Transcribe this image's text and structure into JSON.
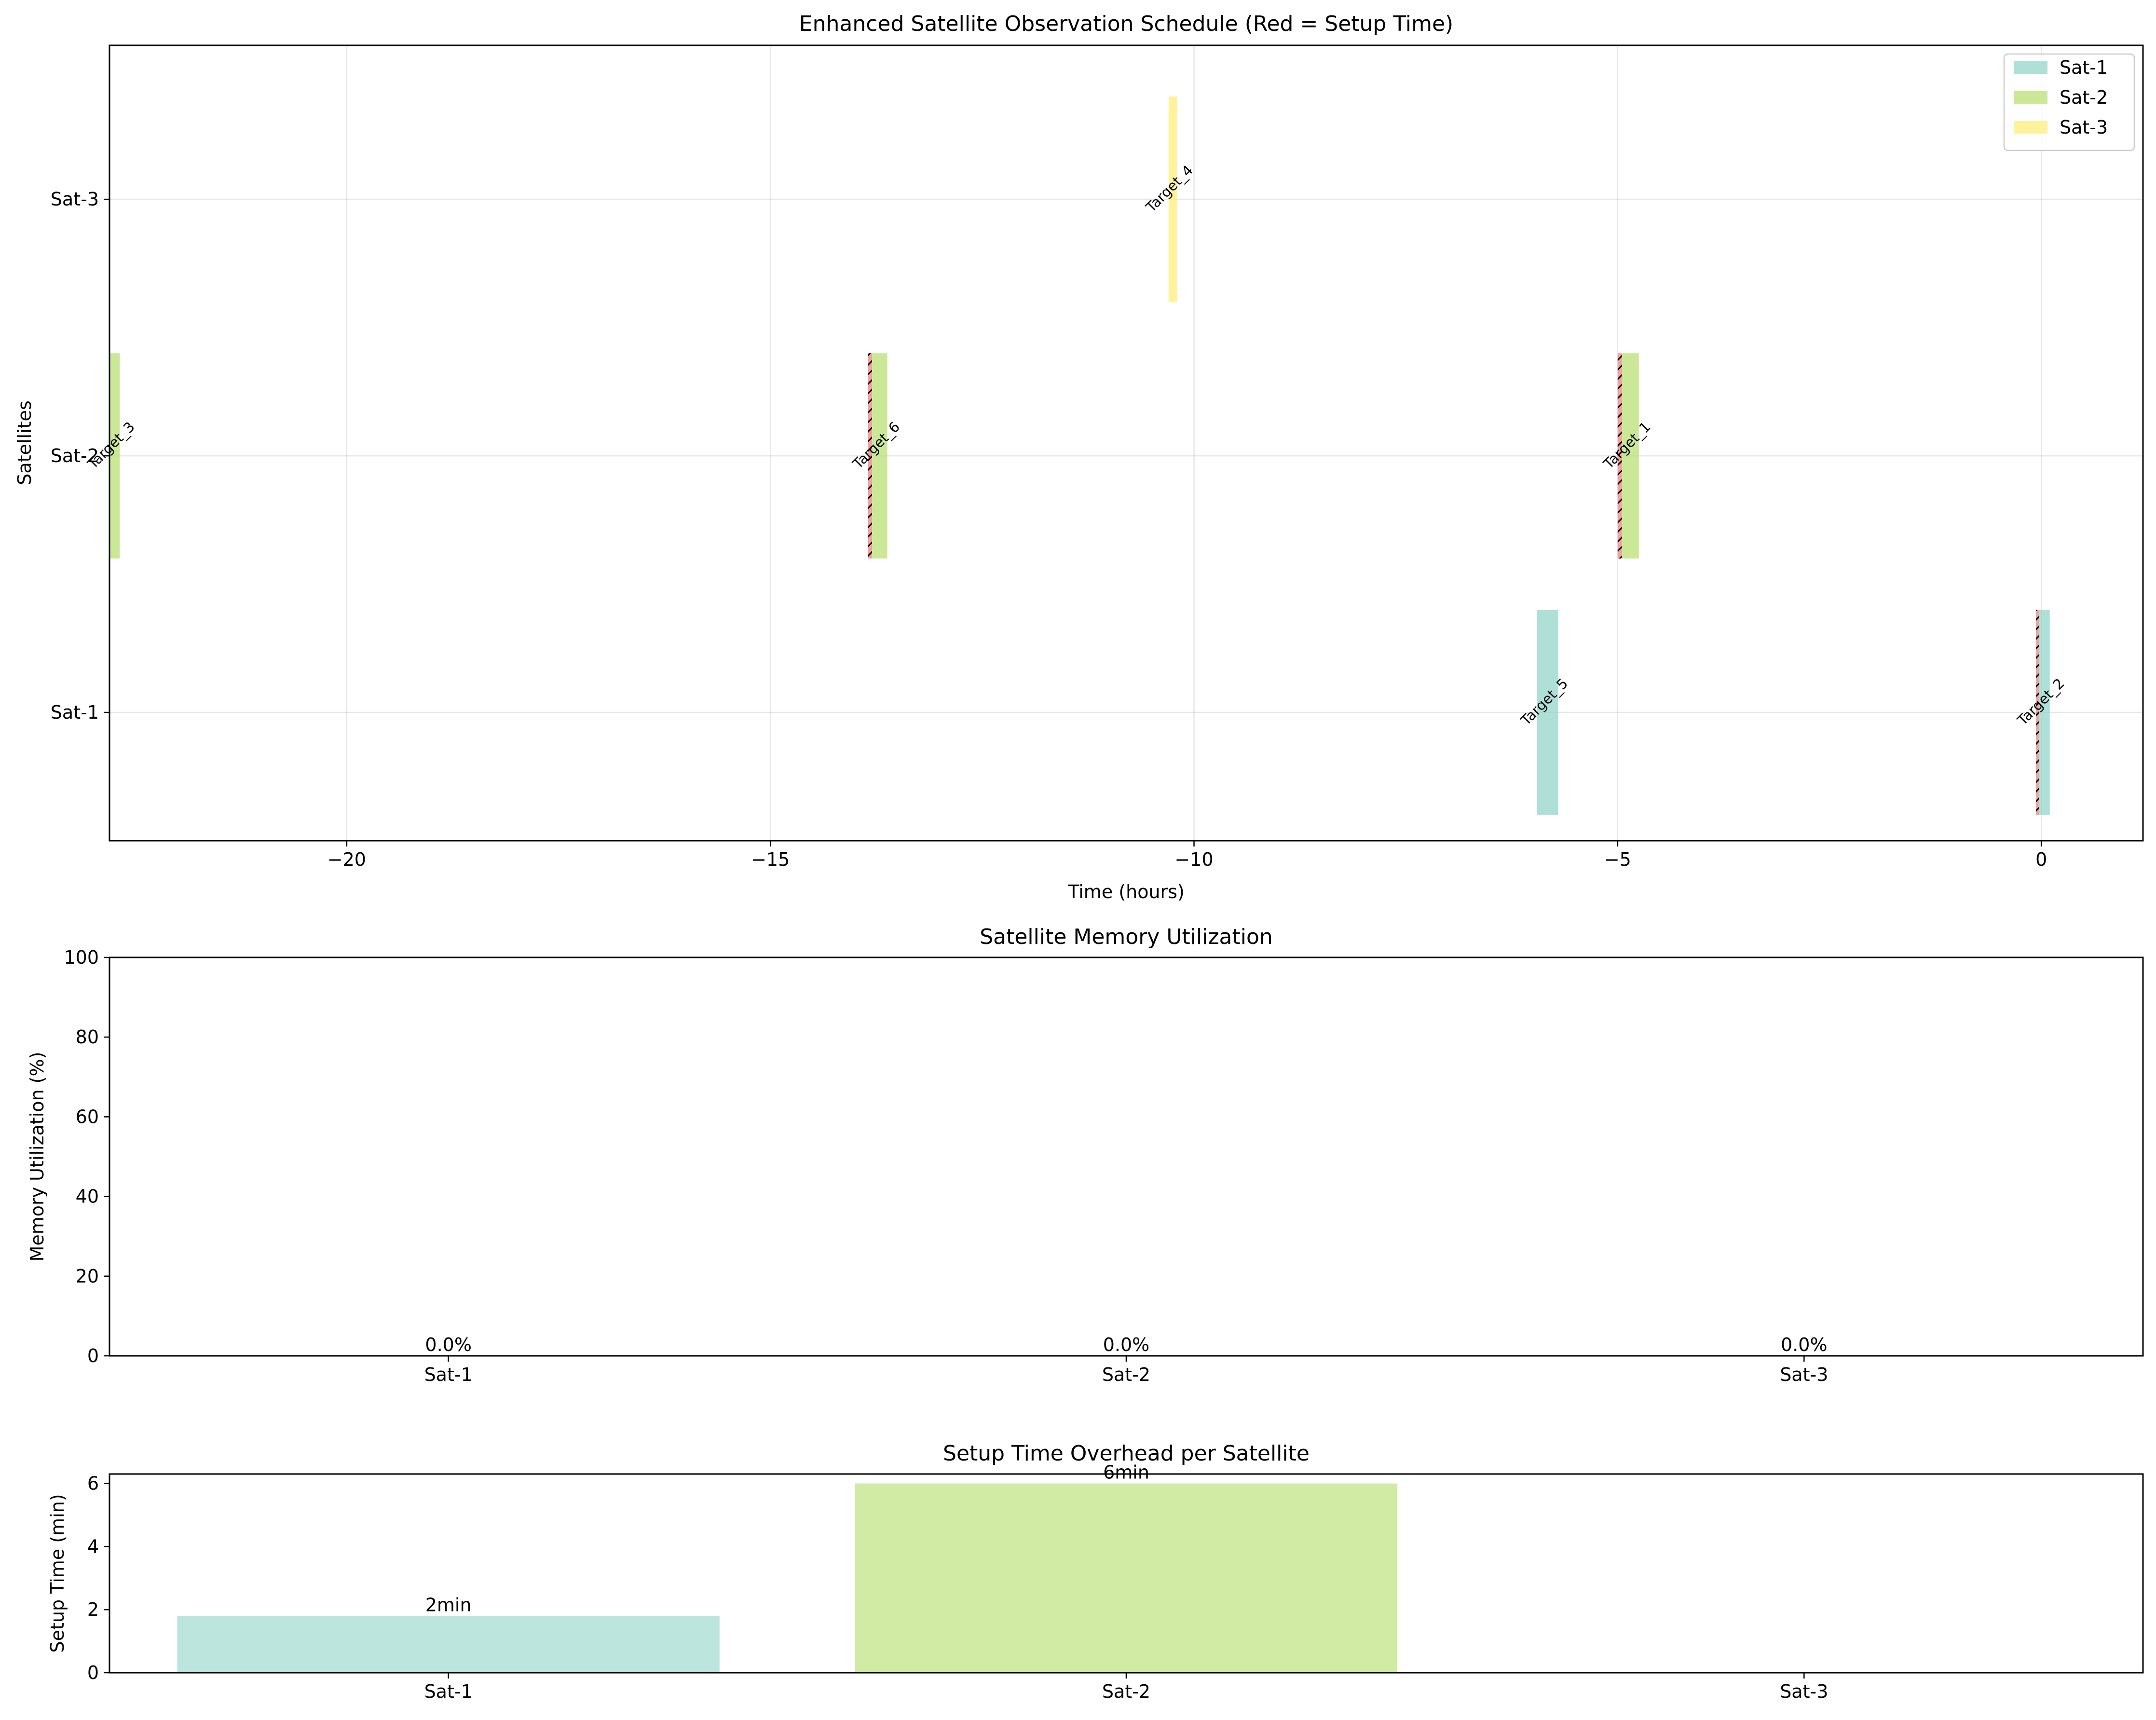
{
  "chart_data": [
    {
      "type": "gantt",
      "title": "Enhanced Satellite Observation Schedule (Red = Setup Time)",
      "xlabel": "Time (hours)",
      "ylabel": "Satellites",
      "xlim": [
        -22.8,
        1.2
      ],
      "xticks": [
        -20,
        -15,
        -10,
        -5,
        0
      ],
      "xtick_labels": [
        "−20",
        "−15",
        "−10",
        "−5",
        "0"
      ],
      "categories": [
        "Sat-1",
        "Sat-2",
        "Sat-3"
      ],
      "grid": true,
      "legend_position": "top-right",
      "legend": [
        "Sat-1",
        "Sat-2",
        "Sat-3"
      ],
      "colors": {
        "Sat-1": "#8dd3c7",
        "Sat-2": "#b3de69",
        "Sat-3": "#ffed6f",
        "setup": "#f08080"
      },
      "tasks": [
        {
          "satellite": "Sat-1",
          "label": "Target_5",
          "start": -5.95,
          "end": -5.7,
          "setup": 0
        },
        {
          "satellite": "Sat-1",
          "label": "Target_2",
          "start": -0.03,
          "end": 0.1,
          "setup": 0.03
        },
        {
          "satellite": "Sat-2",
          "label": "Target_3",
          "start": -22.8,
          "end": -22.68,
          "setup": 0
        },
        {
          "satellite": "Sat-2",
          "label": "Target_6",
          "start": -13.8,
          "end": -13.62,
          "setup": 0.05
        },
        {
          "satellite": "Sat-2",
          "label": "Target_1",
          "start": -4.95,
          "end": -4.75,
          "setup": 0.05
        },
        {
          "satellite": "Sat-3",
          "label": "Target_4",
          "start": -10.3,
          "end": -10.2,
          "setup": 0
        }
      ]
    },
    {
      "type": "bar",
      "title": "Satellite Memory Utilization",
      "ylabel": "Memory Utilization (%)",
      "categories": [
        "Sat-1",
        "Sat-2",
        "Sat-3"
      ],
      "values": [
        0.0,
        0.0,
        0.0
      ],
      "value_labels": [
        "0.0%",
        "0.0%",
        "0.0%"
      ],
      "ylim": [
        0,
        100
      ],
      "yticks": [
        0,
        20,
        40,
        60,
        80,
        100
      ]
    },
    {
      "type": "bar",
      "title": "Setup Time Overhead per Satellite",
      "ylabel": "Setup Time (min)",
      "categories": [
        "Sat-1",
        "Sat-2",
        "Sat-3"
      ],
      "values": [
        1.8,
        6.0,
        0
      ],
      "value_labels": [
        "2min",
        "6min",
        ""
      ],
      "colors": [
        "#8dd3c7",
        "#b3de69",
        "#ffed6f"
      ],
      "ylim": [
        0,
        6.3
      ],
      "yticks": [
        0,
        2,
        4,
        6
      ]
    }
  ]
}
